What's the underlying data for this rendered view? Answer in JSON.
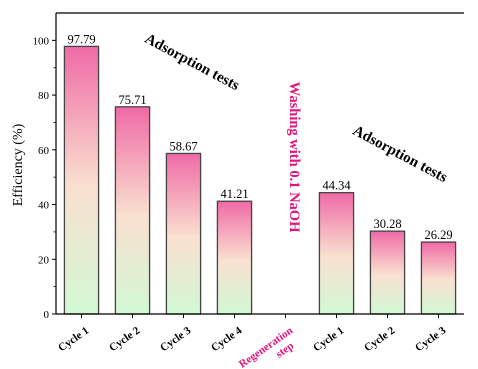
{
  "chart_data": {
    "type": "bar",
    "title": "",
    "ylabel": "Efficiency (%)",
    "xlabel": "",
    "ylim": [
      0,
      110
    ],
    "yticks": [
      0,
      20,
      40,
      60,
      80,
      100
    ],
    "categories": [
      "Cycle 1",
      "Cycle 2",
      "Cycle 3",
      "Cycle 4",
      "Regeneration step",
      "Cycle 1",
      "Cycle 2",
      "Cycle 3"
    ],
    "category_lines": [
      [
        "Cycle 1"
      ],
      [
        "Cycle 2"
      ],
      [
        "Cycle 3"
      ],
      [
        "Cycle 4"
      ],
      [
        "Regeneration",
        "step"
      ],
      [
        "Cycle 1"
      ],
      [
        "Cycle 2"
      ],
      [
        "Cycle 3"
      ]
    ],
    "values": [
      97.79,
      75.71,
      58.67,
      41.21,
      null,
      44.34,
      30.28,
      26.29
    ],
    "value_labels": [
      "97.79",
      "75.71",
      "58.67",
      "41.21",
      "",
      "44.34",
      "30.28",
      "26.29"
    ],
    "bar_gradient": {
      "top": "#f06aa6",
      "middle": "#f9e0cf",
      "bottom": "#d2f8d4"
    },
    "special_label_color": "#e2137a",
    "grid": false,
    "annotations": [
      {
        "text": "Adsorption tests",
        "color": "#000000"
      },
      {
        "text": "Washing with 0.1 NaOH",
        "color": "#e2137a"
      },
      {
        "text": "Adsorption tests",
        "color": "#000000"
      }
    ]
  }
}
